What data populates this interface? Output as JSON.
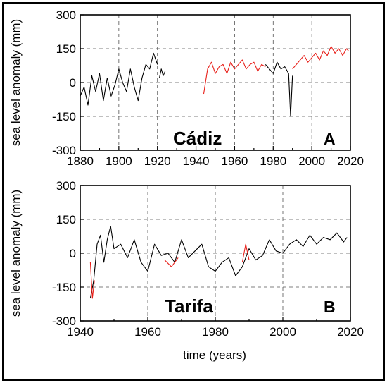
{
  "chart_data": [
    {
      "type": "line",
      "panel_label": "A",
      "site_label": "Cádiz",
      "ylabel": "sea level anomaly (mm)",
      "xlabel": "",
      "xlim": [
        1880,
        2020
      ],
      "ylim": [
        -300,
        300
      ],
      "xticks": [
        "1880",
        "1900",
        "1920",
        "1940",
        "1960",
        "1980",
        "2000",
        "2020"
      ],
      "yticks": [
        "300",
        "150",
        "0",
        "-150",
        "-300"
      ],
      "grid": true,
      "colors": {
        "black_series": "#000000",
        "red_series": "#e8201a"
      },
      "series": [
        {
          "color": "black",
          "segments": [
            {
              "x": [
                1880,
                1882,
                1884,
                1886,
                1888,
                1890,
                1892,
                1894,
                1896,
                1898,
                1900,
                1902,
                1904,
                1906,
                1908,
                1910,
                1912,
                1914,
                1916,
                1918,
                1920
              ],
              "y": [
                -60,
                -20,
                -100,
                30,
                -40,
                40,
                -80,
                20,
                -60,
                -10,
                60,
                0,
                -40,
                60,
                -20,
                -80,
                20,
                80,
                60,
                130,
                80
              ]
            },
            {
              "x": [
                1921,
                1922,
                1923,
                1924
              ],
              "y": [
                20,
                60,
                30,
                50
              ]
            },
            {
              "x": [
                1976,
                1978,
                1980,
                1982,
                1984,
                1986,
                1988,
                1989,
                1990
              ],
              "y": [
                80,
                60,
                40,
                90,
                60,
                70,
                40,
                -150,
                30
              ]
            }
          ]
        },
        {
          "color": "red",
          "segments": [
            {
              "x": [
                1944,
                1946,
                1948,
                1950,
                1952,
                1954,
                1956,
                1958,
                1960,
                1962,
                1964,
                1966,
                1968,
                1970,
                1972,
                1974,
                1976
              ],
              "y": [
                -50,
                60,
                90,
                40,
                70,
                80,
                40,
                90,
                60,
                80,
                100,
                60,
                80,
                90,
                50,
                80,
                70
              ]
            },
            {
              "x": [
                1990,
                1992,
                1994,
                1996,
                1998,
                2000,
                2002,
                2004,
                2006,
                2008,
                2010,
                2012,
                2014,
                2016,
                2018,
                2019
              ],
              "y": [
                60,
                80,
                100,
                120,
                90,
                110,
                130,
                100,
                140,
                120,
                160,
                130,
                150,
                120,
                150,
                140
              ]
            }
          ]
        }
      ]
    },
    {
      "type": "line",
      "panel_label": "B",
      "site_label": "Tarifa",
      "ylabel": "sea level anomaly (mm)",
      "xlabel": "time (years)",
      "xlim": [
        1940,
        2020
      ],
      "ylim": [
        -300,
        300
      ],
      "xticks": [
        "1940",
        "1960",
        "1980",
        "2000",
        "2020"
      ],
      "yticks": [
        "300",
        "150",
        "0",
        "-150",
        "-300"
      ],
      "grid": true,
      "colors": {
        "black_series": "#000000",
        "red_series": "#e8201a"
      },
      "series": [
        {
          "color": "black",
          "segments": [
            {
              "x": [
                1943,
                1944,
                1945,
                1946,
                1947,
                1948,
                1949,
                1950,
                1952,
                1954,
                1956,
                1958,
                1960,
                1962,
                1964,
                1966,
                1968,
                1970,
                1972,
                1974,
                1976,
                1978,
                1980,
                1982,
                1984,
                1986,
                1988,
                1990,
                1992,
                1994,
                1996,
                1998,
                2000,
                2002,
                2004,
                2006,
                2008,
                2010,
                2012,
                2014,
                2016,
                2018,
                2019
              ],
              "y": [
                -200,
                -120,
                40,
                80,
                -40,
                60,
                120,
                20,
                40,
                -20,
                60,
                -40,
                -80,
                40,
                -10,
                0,
                -40,
                60,
                -20,
                10,
                40,
                -60,
                -80,
                -40,
                -20,
                -100,
                -60,
                20,
                -30,
                -10,
                60,
                10,
                0,
                40,
                60,
                30,
                80,
                40,
                70,
                60,
                90,
                50,
                70
              ]
            }
          ]
        },
        {
          "color": "red",
          "segments": [
            {
              "x": [
                1943,
                1943.6,
                1944.2
              ],
              "y": [
                -40,
                -200,
                -120
              ]
            },
            {
              "x": [
                1965,
                1967,
                1969
              ],
              "y": [
                -30,
                -60,
                -20
              ]
            },
            {
              "x": [
                1988,
                1989,
                1990
              ],
              "y": [
                -40,
                40,
                -30
              ]
            }
          ]
        }
      ]
    }
  ]
}
